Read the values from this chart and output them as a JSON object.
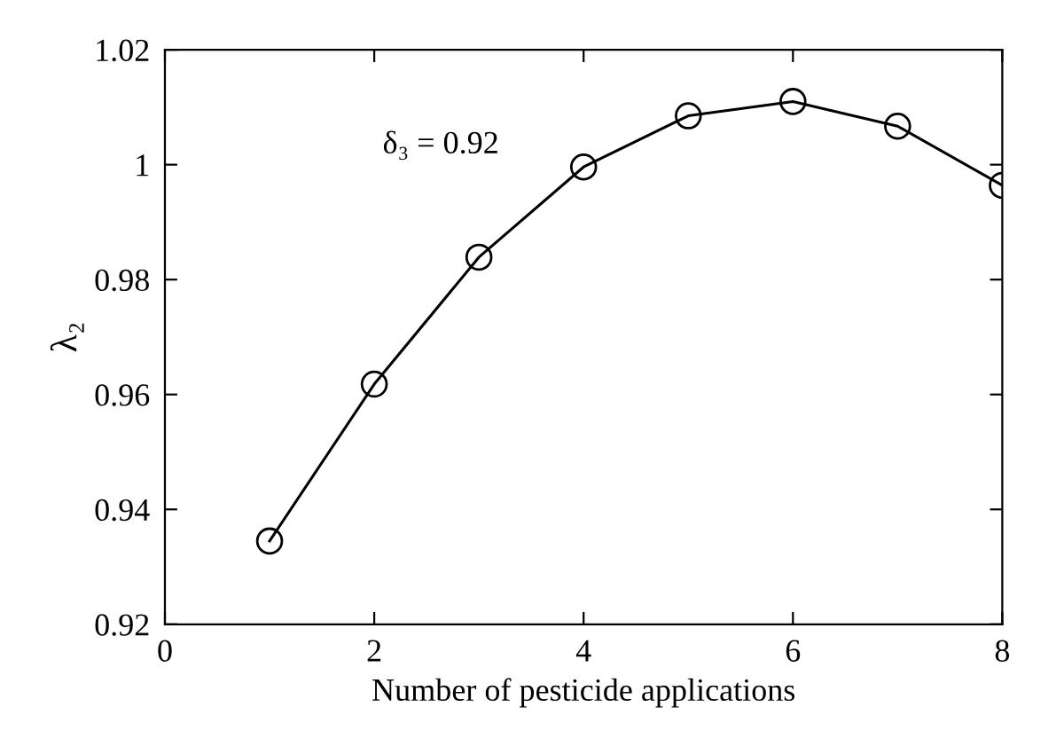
{
  "chart_data": {
    "type": "line",
    "xlabel": "Number of pesticide applications",
    "ylabel": "λ₂",
    "x": [
      1,
      2,
      3,
      4,
      5,
      6,
      7,
      8
    ],
    "series": [
      {
        "color": "#000000",
        "values": [
          0.9345,
          0.9618,
          0.9839,
          0.9996,
          1.0085,
          1.011,
          1.0067,
          0.9964
        ]
      }
    ],
    "xlim": [
      0,
      8
    ],
    "xticks": [
      0,
      2,
      4,
      6,
      8
    ],
    "ylim": [
      0.92,
      1.02
    ],
    "yticks": [
      0.92,
      0.94,
      0.96,
      0.98,
      1,
      1.02
    ],
    "marker": "circle",
    "line_style": "solid",
    "grid": false,
    "legend": false,
    "annotations": [
      "δ₃ = 0.92"
    ]
  }
}
